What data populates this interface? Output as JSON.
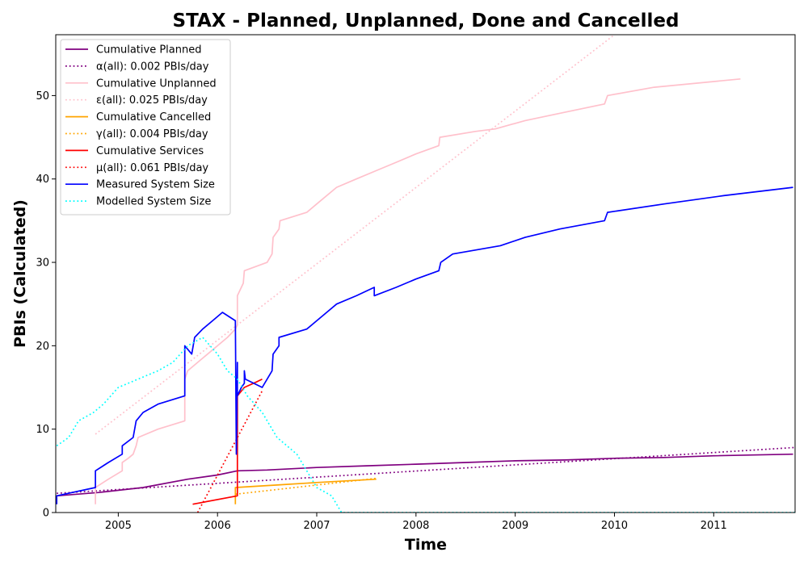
{
  "chart_data": {
    "type": "line",
    "title": "STAX - Planned, Unplanned, Done  and Cancelled",
    "xlabel": "Time",
    "ylabel": "PBIs (Calculated)",
    "xlim": [
      2004.37,
      2011.82
    ],
    "ylim": [
      0,
      57.3
    ],
    "x_ticks": [
      2005,
      2006,
      2007,
      2008,
      2009,
      2010,
      2011
    ],
    "y_ticks": [
      0,
      10,
      20,
      30,
      40,
      50
    ],
    "grid": false,
    "legend_position": "top-left",
    "series": [
      {
        "name": "Cumulative Planned",
        "color": "#800080",
        "dash": "solid",
        "points": [
          [
            2004.38,
            2
          ],
          [
            2004.8,
            2.4
          ],
          [
            2005.25,
            3
          ],
          [
            2005.7,
            4
          ],
          [
            2006.0,
            4.5
          ],
          [
            2006.2,
            5
          ],
          [
            2006.5,
            5.1
          ],
          [
            2007.0,
            5.4
          ],
          [
            2007.5,
            5.6
          ],
          [
            2008.0,
            5.8
          ],
          [
            2008.5,
            6
          ],
          [
            2009.0,
            6.2
          ],
          [
            2009.5,
            6.3
          ],
          [
            2010.0,
            6.5
          ],
          [
            2010.5,
            6.6
          ],
          [
            2011.0,
            6.8
          ],
          [
            2011.8,
            7
          ]
        ]
      },
      {
        "name": "α(all): 0.002 PBIs/day",
        "color": "#800080",
        "dash": "dotted",
        "points": [
          [
            2004.38,
            2.3
          ],
          [
            2011.82,
            7.8
          ]
        ]
      },
      {
        "name": "Cumulative Unplanned",
        "color": "#ffc0cb",
        "dash": "solid",
        "points": [
          [
            2004.77,
            1
          ],
          [
            2004.77,
            3
          ],
          [
            2004.9,
            4
          ],
          [
            2005.04,
            5
          ],
          [
            2005.04,
            6
          ],
          [
            2005.1,
            6.5
          ],
          [
            2005.15,
            7
          ],
          [
            2005.18,
            8
          ],
          [
            2005.2,
            9
          ],
          [
            2005.4,
            10
          ],
          [
            2005.67,
            11
          ],
          [
            2005.67,
            16
          ],
          [
            2005.7,
            17
          ],
          [
            2005.8,
            18
          ],
          [
            2005.9,
            19
          ],
          [
            2006.1,
            21
          ],
          [
            2006.18,
            22
          ],
          [
            2006.2,
            22.5
          ],
          [
            2006.2,
            26
          ],
          [
            2006.26,
            27.5
          ],
          [
            2006.27,
            29
          ],
          [
            2006.5,
            30
          ],
          [
            2006.55,
            31
          ],
          [
            2006.56,
            33
          ],
          [
            2006.62,
            34
          ],
          [
            2006.63,
            35
          ],
          [
            2006.9,
            36
          ],
          [
            2007.0,
            37
          ],
          [
            2007.2,
            39
          ],
          [
            2007.4,
            40
          ],
          [
            2007.6,
            41
          ],
          [
            2007.8,
            42
          ],
          [
            2008.0,
            43
          ],
          [
            2008.23,
            44
          ],
          [
            2008.24,
            45
          ],
          [
            2008.6,
            45.7
          ],
          [
            2008.8,
            46
          ],
          [
            2009.1,
            47
          ],
          [
            2009.5,
            48
          ],
          [
            2009.9,
            49
          ],
          [
            2009.93,
            50
          ],
          [
            2010.4,
            51
          ],
          [
            2011.27,
            52
          ]
        ]
      },
      {
        "name": "ε(all): 0.025 PBIs/day",
        "color": "#ffc0cb",
        "dash": "dotted",
        "points": [
          [
            2004.77,
            9.4
          ],
          [
            2010.0,
            57.3
          ]
        ]
      },
      {
        "name": "Cumulative Cancelled",
        "color": "#ffa500",
        "dash": "solid",
        "points": [
          [
            2006.18,
            1
          ],
          [
            2006.18,
            3
          ],
          [
            2006.6,
            3.3
          ],
          [
            2007.0,
            3.6
          ],
          [
            2007.6,
            4
          ]
        ]
      },
      {
        "name": "γ(all): 0.004 PBIs/day",
        "color": "#ffa500",
        "dash": "dotted",
        "points": [
          [
            2006.18,
            2.2
          ],
          [
            2007.6,
            4.1
          ]
        ]
      },
      {
        "name": "Cumulative Services",
        "color": "#ff0000",
        "dash": "solid",
        "points": [
          [
            2005.75,
            1
          ],
          [
            2006.2,
            2
          ],
          [
            2006.2,
            14
          ],
          [
            2006.27,
            15
          ],
          [
            2006.4,
            15.7
          ],
          [
            2006.45,
            16
          ]
        ]
      },
      {
        "name": "μ(all): 0.061 PBIs/day",
        "color": "#ff0000",
        "dash": "dotted",
        "points": [
          [
            2005.8,
            0
          ],
          [
            2006.45,
            14.6
          ]
        ]
      },
      {
        "name": "Measured System Size",
        "color": "#0000ff",
        "dash": "solid",
        "points": [
          [
            2004.38,
            1
          ],
          [
            2004.38,
            2
          ],
          [
            2004.77,
            3
          ],
          [
            2004.77,
            5
          ],
          [
            2004.9,
            6
          ],
          [
            2005.04,
            7
          ],
          [
            2005.04,
            8
          ],
          [
            2005.15,
            9
          ],
          [
            2005.18,
            11
          ],
          [
            2005.25,
            12
          ],
          [
            2005.4,
            13
          ],
          [
            2005.67,
            14
          ],
          [
            2005.67,
            20
          ],
          [
            2005.74,
            19
          ],
          [
            2005.77,
            21
          ],
          [
            2005.85,
            22
          ],
          [
            2005.95,
            23
          ],
          [
            2006.05,
            24
          ],
          [
            2006.18,
            23
          ],
          [
            2006.19,
            7
          ],
          [
            2006.2,
            18
          ],
          [
            2006.2,
            14
          ],
          [
            2006.24,
            15
          ],
          [
            2006.27,
            15.5
          ],
          [
            2006.27,
            17
          ],
          [
            2006.28,
            16
          ],
          [
            2006.45,
            15
          ],
          [
            2006.55,
            17
          ],
          [
            2006.56,
            19
          ],
          [
            2006.62,
            20
          ],
          [
            2006.62,
            21
          ],
          [
            2006.9,
            22
          ],
          [
            2007.0,
            23
          ],
          [
            2007.2,
            25
          ],
          [
            2007.4,
            26
          ],
          [
            2007.58,
            27
          ],
          [
            2007.58,
            26
          ],
          [
            2007.8,
            27
          ],
          [
            2008.0,
            28
          ],
          [
            2008.23,
            29
          ],
          [
            2008.25,
            30
          ],
          [
            2008.37,
            31
          ],
          [
            2008.85,
            32
          ],
          [
            2009.1,
            33
          ],
          [
            2009.45,
            34
          ],
          [
            2009.9,
            35
          ],
          [
            2009.93,
            36
          ],
          [
            2010.5,
            37
          ],
          [
            2011.1,
            38
          ],
          [
            2011.8,
            39
          ]
        ]
      },
      {
        "name": "Modelled System Size",
        "color": "#00ffff",
        "dash": "dotted",
        "points": [
          [
            2004.38,
            8
          ],
          [
            2004.5,
            9
          ],
          [
            2004.6,
            11
          ],
          [
            2004.75,
            12
          ],
          [
            2004.85,
            13
          ],
          [
            2005.0,
            15
          ],
          [
            2005.2,
            16
          ],
          [
            2005.4,
            17
          ],
          [
            2005.55,
            18
          ],
          [
            2005.7,
            20
          ],
          [
            2005.85,
            21
          ],
          [
            2006.0,
            19
          ],
          [
            2006.1,
            17
          ],
          [
            2006.2,
            16
          ],
          [
            2006.3,
            14
          ],
          [
            2006.45,
            12
          ],
          [
            2006.6,
            9
          ],
          [
            2006.8,
            7
          ],
          [
            2007.0,
            3
          ],
          [
            2007.15,
            2
          ],
          [
            2007.25,
            0
          ],
          [
            2011.82,
            0
          ]
        ]
      }
    ]
  }
}
